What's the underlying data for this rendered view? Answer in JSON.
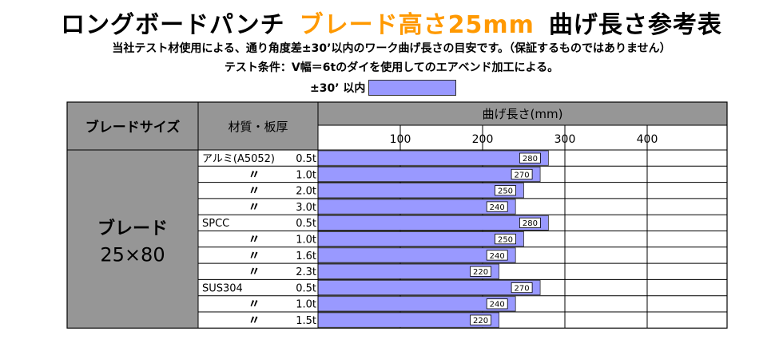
{
  "title": {
    "main": "ロングボードパンチ",
    "blade": "ブレード高さ25mm",
    "suffix": "曲げ長さ参考表"
  },
  "notes": {
    "line1": "当社テスト材使用による、通り角度差±30’以内のワーク曲げ長さの目安です。（保証するものではありません）",
    "line2": "テスト条件：V幅＝6tのダイを使用してのエアベンド加工による。"
  },
  "legend": {
    "label": "±30’ 以内"
  },
  "colors": {
    "bar": "#9999ff",
    "header": "#969696",
    "grid": "#000000"
  },
  "table": {
    "col_blade": "ブレードサイズ",
    "col_material": "材質・板厚",
    "col_length": "曲げ長さ(mm)",
    "blade_name": "ブレード",
    "blade_size": "25×80"
  },
  "chart_data": {
    "type": "bar",
    "orientation": "horizontal",
    "title": "曲げ長さ(mm)",
    "xlim": [
      0,
      500
    ],
    "xticks": [
      100,
      200,
      300,
      400
    ],
    "grid": true,
    "rows": [
      {
        "material": "アルミ(A5052)",
        "thickness": "0.5t",
        "value": 280
      },
      {
        "material": "〃",
        "thickness": "1.0t",
        "value": 270
      },
      {
        "material": "〃",
        "thickness": "2.0t",
        "value": 250
      },
      {
        "material": "〃",
        "thickness": "3.0t",
        "value": 240
      },
      {
        "material": "SPCC",
        "thickness": "0.5t",
        "value": 280
      },
      {
        "material": "〃",
        "thickness": "1.0t",
        "value": 250
      },
      {
        "material": "〃",
        "thickness": "1.6t",
        "value": 240
      },
      {
        "material": "〃",
        "thickness": "2.3t",
        "value": 220
      },
      {
        "material": "SUS304",
        "thickness": "0.5t",
        "value": 270
      },
      {
        "material": "〃",
        "thickness": "1.0t",
        "value": 240
      },
      {
        "material": "〃",
        "thickness": "1.5t",
        "value": 220
      }
    ]
  }
}
